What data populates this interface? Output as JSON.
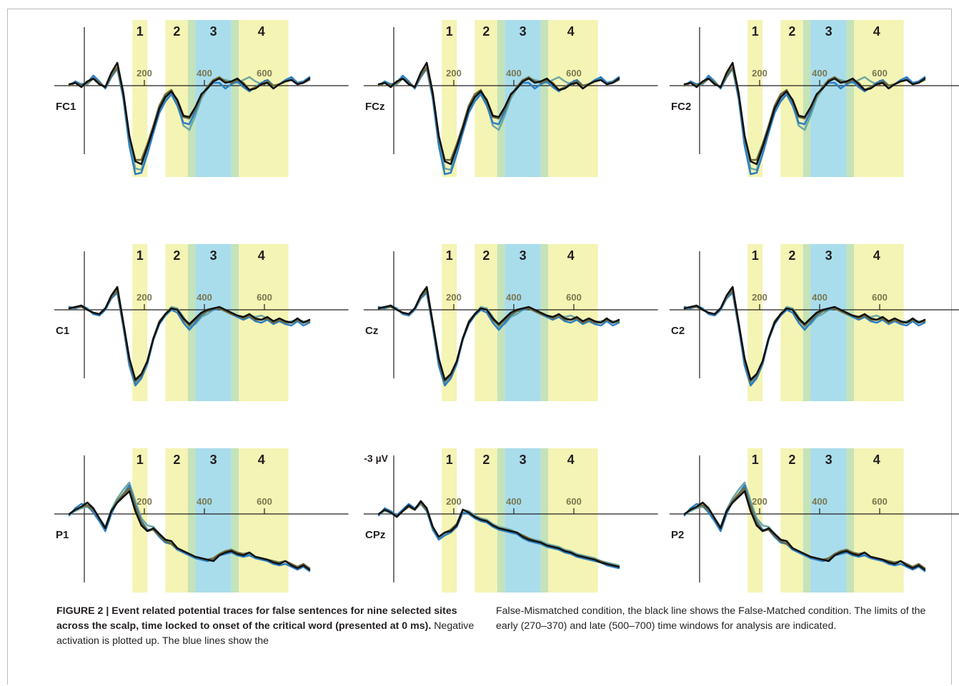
{
  "caption": {
    "lead": "FIGURE 2 | Event related potential traces for false sentences for nine selected sites across the scalp, time locked to onset of the critical word (presented at 0 ms).",
    "left_rest": " Negative activation is plotted up. The blue lines show the",
    "right": "False-Mismatched condition, the black line shows the False-Matched condition. The limits of the early (270–370) and late (500–700) time windows for analysis are indicated."
  },
  "chart_data": {
    "type": "line",
    "panels": [
      {
        "site": "FC1",
        "window_labels": [
          "1",
          "2",
          "3",
          "4"
        ],
        "tick_labels": [
          "200",
          "400",
          "600"
        ],
        "shape": "frontal"
      },
      {
        "site": "FCz",
        "window_labels": [
          "1",
          "2",
          "3",
          "4"
        ],
        "tick_labels": [
          "200",
          "400",
          "600"
        ],
        "shape": "frontal"
      },
      {
        "site": "FC2",
        "window_labels": [
          "1",
          "2",
          "3",
          "4"
        ],
        "tick_labels": [
          "200",
          "400",
          "600"
        ],
        "shape": "frontal"
      },
      {
        "site": "C1",
        "window_labels": [
          "1",
          "2",
          "3",
          "4"
        ],
        "tick_labels": [
          "200",
          "400",
          "600"
        ],
        "shape": "central"
      },
      {
        "site": "Cz",
        "window_labels": [
          "1",
          "2",
          "3",
          "4"
        ],
        "tick_labels": [
          "200",
          "400",
          "600"
        ],
        "shape": "central"
      },
      {
        "site": "C2",
        "window_labels": [
          "1",
          "2",
          "3",
          "4"
        ],
        "tick_labels": [
          "200",
          "400",
          "600"
        ],
        "shape": "central"
      },
      {
        "site": "P1",
        "window_labels": [
          "1",
          "2",
          "3",
          "4"
        ],
        "tick_labels": [
          "200",
          "400",
          "600"
        ],
        "shape": "parietal"
      },
      {
        "site": "CPz",
        "window_labels": [
          "1",
          "2",
          "3",
          "4"
        ],
        "tick_labels": [
          "200",
          "400",
          "600"
        ],
        "shape": "cparietal",
        "scale_label": "-3 µV"
      },
      {
        "site": "P2",
        "window_labels": [
          "1",
          "2",
          "3",
          "4"
        ],
        "tick_labels": [
          "200",
          "400",
          "600"
        ],
        "shape": "parietal"
      }
    ],
    "shapes": {
      "frontal": {
        "x": [
          -50,
          -30,
          -10,
          10,
          30,
          50,
          70,
          90,
          110,
          130,
          150,
          170,
          190,
          210,
          230,
          250,
          270,
          290,
          310,
          330,
          350,
          370,
          390,
          410,
          430,
          450,
          470,
          490,
          510,
          530,
          550,
          570,
          590,
          610,
          630,
          650,
          670,
          690,
          710,
          730,
          750
        ],
        "black": [
          0.1,
          0.2,
          -0.1,
          0.3,
          0.5,
          0.1,
          -0.1,
          0.9,
          1.6,
          -0.5,
          -3.5,
          -5.3,
          -5.5,
          -4.3,
          -3.0,
          -1.6,
          -0.8,
          -0.4,
          -1.0,
          -2.1,
          -2.2,
          -1.5,
          -0.6,
          -0.2,
          0.3,
          0.5,
          0.2,
          0.3,
          0.5,
          0.1,
          -0.3,
          -0.2,
          0.1,
          0.2,
          -0.2,
          0.1,
          0.3,
          0.4,
          0.1,
          0.2,
          0.5
        ],
        "blue": [
          0.0,
          0.3,
          0.1,
          0.2,
          0.7,
          0.3,
          -0.2,
          0.6,
          1.2,
          -0.9,
          -4.2,
          -6.2,
          -6.1,
          -4.8,
          -3.3,
          -1.9,
          -1.1,
          -0.6,
          -1.4,
          -2.6,
          -2.7,
          -1.8,
          -0.7,
          -0.1,
          0.2,
          0.2,
          -0.2,
          0.1,
          0.3,
          -0.1,
          -0.4,
          -0.1,
          0.2,
          0.4,
          0.0,
          0.1,
          0.4,
          0.6,
          0.2,
          0.3,
          0.6
        ],
        "teal": [
          0.0,
          0.2,
          0.0,
          0.1,
          0.5,
          0.2,
          -0.1,
          0.7,
          1.3,
          -0.7,
          -3.9,
          -5.8,
          -5.9,
          -4.5,
          -3.1,
          -1.8,
          -0.9,
          -0.5,
          -1.2,
          -2.8,
          -3.1,
          -2.1,
          -0.9,
          -0.2,
          0.3,
          0.5,
          0.4,
          0.3,
          0.2,
          0.4,
          0.6,
          0.3,
          0.1,
          0.2,
          0.0,
          0.1,
          0.3,
          0.5,
          0.2,
          0.2,
          0.5
        ],
        "olive": [
          0.0,
          0.2,
          0.0,
          0.2,
          0.5,
          0.2,
          -0.1,
          0.7,
          1.3,
          -0.6,
          -3.6,
          -5.2,
          -5.2,
          -4.1,
          -2.8,
          -1.4,
          -0.6,
          -0.3,
          -1.1,
          -2.2,
          -2.3,
          -1.6,
          -0.7,
          -0.1,
          0.4,
          0.6,
          0.3,
          0.2,
          0.4,
          0.2,
          -0.3,
          -0.1,
          0.1,
          0.3,
          0.0,
          0.1,
          0.3,
          0.4,
          0.1,
          0.2,
          0.4
        ]
      },
      "central": {
        "x": [
          -50,
          -30,
          -10,
          10,
          30,
          50,
          70,
          90,
          110,
          130,
          150,
          170,
          190,
          210,
          230,
          250,
          270,
          290,
          310,
          330,
          350,
          370,
          390,
          410,
          430,
          450,
          470,
          490,
          510,
          530,
          550,
          570,
          590,
          610,
          630,
          650,
          670,
          690,
          710,
          730,
          750
        ],
        "black": [
          0.1,
          0.2,
          0.3,
          0.0,
          -0.2,
          -0.3,
          0.1,
          1.0,
          1.6,
          -0.9,
          -3.4,
          -4.9,
          -4.5,
          -3.6,
          -2.0,
          -0.9,
          -0.3,
          0.1,
          0.0,
          -0.6,
          -1.0,
          -0.6,
          -0.2,
          0.0,
          0.1,
          0.2,
          0.0,
          -0.2,
          -0.4,
          -0.5,
          -0.3,
          -0.6,
          -0.7,
          -0.5,
          -0.8,
          -0.6,
          -0.8,
          -0.9,
          -0.6,
          -0.9,
          -0.7
        ],
        "blue": [
          0.2,
          0.1,
          0.3,
          0.1,
          -0.3,
          -0.4,
          0.0,
          0.8,
          1.2,
          -1.2,
          -3.9,
          -5.3,
          -4.8,
          -3.8,
          -2.1,
          -1.0,
          -0.4,
          0.0,
          -0.2,
          -0.9,
          -1.4,
          -0.9,
          -0.4,
          -0.1,
          0.0,
          0.1,
          -0.1,
          -0.3,
          -0.5,
          -0.7,
          -0.5,
          -0.8,
          -0.9,
          -0.7,
          -1.0,
          -0.8,
          -1.0,
          -1.1,
          -0.8,
          -1.1,
          -0.9
        ],
        "teal": [
          0.1,
          0.1,
          0.2,
          0.0,
          -0.2,
          -0.3,
          0.1,
          0.9,
          1.3,
          -1.1,
          -3.7,
          -5.2,
          -4.7,
          -3.7,
          -2.1,
          -0.9,
          -0.3,
          0.2,
          0.1,
          -0.5,
          -1.2,
          -1.0,
          -0.5,
          -0.3,
          0.0,
          0.1,
          0.0,
          -0.3,
          -0.5,
          -0.6,
          -0.4,
          -0.5,
          -0.4,
          -0.6,
          -0.8,
          -0.7,
          -0.9,
          -0.8,
          -0.7,
          -0.8,
          -0.8
        ],
        "olive": [
          0.1,
          0.2,
          0.2,
          0.0,
          -0.2,
          -0.3,
          0.1,
          0.9,
          1.4,
          -1.0,
          -3.5,
          -5.0,
          -4.6,
          -3.6,
          -2.0,
          -0.8,
          -0.3,
          0.1,
          0.0,
          -0.7,
          -1.1,
          -0.7,
          -0.3,
          -0.1,
          0.1,
          0.1,
          -0.1,
          -0.3,
          -0.4,
          -0.6,
          -0.4,
          -0.7,
          -0.7,
          -0.6,
          -0.9,
          -0.7,
          -0.9,
          -0.9,
          -0.7,
          -0.9,
          -0.8
        ]
      },
      "parietal": {
        "x": [
          -50,
          -30,
          -10,
          10,
          30,
          50,
          70,
          90,
          110,
          130,
          150,
          170,
          190,
          210,
          230,
          250,
          270,
          290,
          310,
          330,
          350,
          370,
          390,
          410,
          430,
          450,
          470,
          490,
          510,
          530,
          550,
          570,
          590,
          610,
          630,
          650,
          670,
          690,
          710,
          730,
          750
        ],
        "black": [
          0.0,
          0.3,
          0.5,
          0.8,
          0.4,
          -0.3,
          -1.0,
          0.2,
          0.8,
          1.2,
          1.6,
          0.2,
          -0.8,
          -1.2,
          -1.0,
          -1.4,
          -1.8,
          -1.9,
          -2.4,
          -2.6,
          -2.8,
          -3.0,
          -3.1,
          -3.2,
          -3.3,
          -2.9,
          -2.7,
          -2.6,
          -2.8,
          -2.9,
          -2.7,
          -3.0,
          -3.1,
          -3.2,
          -3.4,
          -3.5,
          -3.3,
          -3.6,
          -3.8,
          -3.6,
          -3.9
        ],
        "blue": [
          -0.1,
          0.4,
          0.7,
          0.6,
          0.1,
          -0.5,
          -1.2,
          0.0,
          0.9,
          1.4,
          2.0,
          0.6,
          -0.5,
          -1.1,
          -1.1,
          -1.6,
          -2.0,
          -2.1,
          -2.5,
          -2.7,
          -2.9,
          -3.1,
          -3.2,
          -3.3,
          -3.2,
          -2.9,
          -2.8,
          -2.7,
          -2.9,
          -3.0,
          -2.9,
          -3.1,
          -3.2,
          -3.3,
          -3.5,
          -3.6,
          -3.5,
          -3.7,
          -3.9,
          -3.7,
          -4.0
        ],
        "teal": [
          0.0,
          0.2,
          0.4,
          0.5,
          0.2,
          -0.3,
          -0.9,
          0.3,
          1.1,
          1.7,
          2.2,
          0.9,
          -0.3,
          -0.8,
          -0.9,
          -1.4,
          -1.8,
          -2.0,
          -2.4,
          -2.7,
          -2.9,
          -3.0,
          -3.2,
          -3.3,
          -3.1,
          -2.8,
          -2.6,
          -2.5,
          -2.7,
          -2.9,
          -2.8,
          -3.0,
          -3.1,
          -3.2,
          -3.3,
          -3.4,
          -3.3,
          -3.5,
          -3.7,
          -3.6,
          -3.8
        ],
        "olive": [
          0.0,
          0.3,
          0.5,
          0.6,
          0.3,
          -0.3,
          -1.0,
          0.2,
          0.9,
          1.4,
          1.8,
          0.5,
          -0.6,
          -1.2,
          -1.1,
          -1.5,
          -1.9,
          -2.1,
          -2.4,
          -2.6,
          -2.8,
          -3.0,
          -3.1,
          -3.2,
          -3.1,
          -2.8,
          -2.6,
          -2.5,
          -2.7,
          -2.8,
          -2.7,
          -3.0,
          -3.1,
          -3.2,
          -3.3,
          -3.4,
          -3.3,
          -3.5,
          -3.7,
          -3.5,
          -3.8
        ]
      },
      "cparietal": {
        "x": [
          -50,
          -30,
          -10,
          10,
          30,
          50,
          70,
          90,
          110,
          130,
          150,
          170,
          190,
          210,
          230,
          250,
          270,
          290,
          310,
          330,
          350,
          370,
          390,
          410,
          430,
          450,
          470,
          490,
          510,
          530,
          550,
          570,
          590,
          610,
          630,
          650,
          670,
          690,
          710,
          730,
          750
        ],
        "black": [
          0.0,
          0.3,
          0.1,
          -0.2,
          0.2,
          0.6,
          0.3,
          0.9,
          0.4,
          -0.9,
          -1.6,
          -1.3,
          -1.2,
          -0.8,
          0.3,
          0.1,
          -0.2,
          -0.4,
          -0.5,
          -0.8,
          -1.0,
          -1.1,
          -1.2,
          -1.3,
          -1.6,
          -1.8,
          -1.9,
          -2.0,
          -2.2,
          -2.3,
          -2.4,
          -2.6,
          -2.7,
          -2.9,
          -3.0,
          -3.1,
          -3.2,
          -3.4,
          -3.5,
          -3.6,
          -3.7
        ],
        "blue": [
          -0.1,
          0.4,
          0.2,
          -0.1,
          0.3,
          0.7,
          0.4,
          0.8,
          0.2,
          -1.1,
          -1.8,
          -1.5,
          -1.3,
          -0.9,
          0.1,
          0.0,
          -0.3,
          -0.5,
          -0.6,
          -0.9,
          -1.1,
          -1.2,
          -1.3,
          -1.4,
          -1.7,
          -1.9,
          -2.0,
          -2.1,
          -2.3,
          -2.4,
          -2.5,
          -2.7,
          -2.8,
          -3.0,
          -3.1,
          -3.2,
          -3.3,
          -3.4,
          -3.6,
          -3.7,
          -3.8
        ],
        "teal": [
          0.0,
          0.2,
          0.1,
          -0.2,
          0.2,
          0.5,
          0.3,
          0.7,
          0.2,
          -1.0,
          -1.7,
          -1.4,
          -1.1,
          -0.7,
          0.3,
          0.2,
          -0.1,
          -0.3,
          -0.4,
          -0.7,
          -0.9,
          -1.0,
          -1.1,
          -1.3,
          -1.5,
          -1.7,
          -1.8,
          -1.9,
          -2.1,
          -2.2,
          -2.3,
          -2.5,
          -2.6,
          -2.8,
          -2.9,
          -3.0,
          -3.1,
          -3.3,
          -3.4,
          -3.5,
          -3.6
        ],
        "olive": [
          0.0,
          0.3,
          0.1,
          -0.2,
          0.2,
          0.5,
          0.3,
          0.8,
          0.3,
          -0.9,
          -1.6,
          -1.3,
          -1.1,
          -0.7,
          0.3,
          0.1,
          -0.2,
          -0.4,
          -0.5,
          -0.8,
          -1.0,
          -1.1,
          -1.2,
          -1.3,
          -1.5,
          -1.7,
          -1.9,
          -2.0,
          -2.2,
          -2.3,
          -2.4,
          -2.6,
          -2.7,
          -2.9,
          -3.0,
          -3.1,
          -3.2,
          -3.3,
          -3.5,
          -3.6,
          -3.7
        ]
      }
    },
    "series_colors": {
      "blue": "#2e7fc2",
      "black": "#111111",
      "teal": "#6fa9a3",
      "olive": "#6e6a3a"
    },
    "window_colors": {
      "yellow": "#f4f4b4",
      "blue": "#a9ddec",
      "green": "#c5e3b9"
    },
    "analysis_windows_ms": {
      "early": [
        270,
        370
      ],
      "late": [
        500,
        700
      ]
    }
  }
}
